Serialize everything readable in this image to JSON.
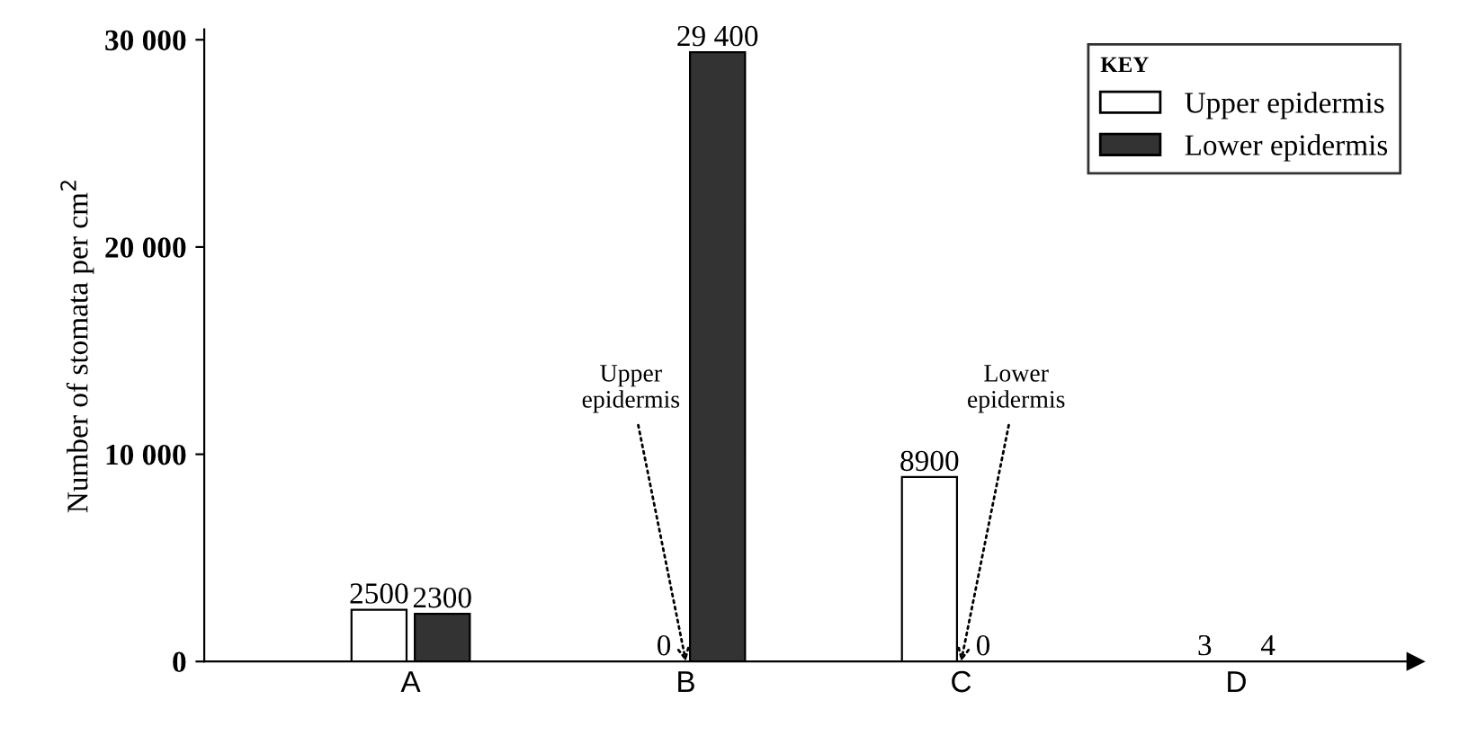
{
  "chart_data": {
    "type": "bar",
    "ylabel": "Number of stomata per cm$^{2}$",
    "legend_title": "KEY",
    "legend": "top right",
    "categories": [
      "A",
      "B",
      "C",
      "D"
    ],
    "series": [
      {
        "name": "Upper epidermis",
        "color": "#ffffff",
        "values": [
          2500,
          0,
          8900,
          3
        ],
        "value_labels": [
          "2500",
          "0",
          "8900",
          "3"
        ]
      },
      {
        "name": "Lower epidermis",
        "color": "#333333",
        "values": [
          2300,
          29400,
          0,
          4
        ],
        "value_labels": [
          "2300",
          "29 400",
          "0",
          "4"
        ]
      }
    ],
    "ylim": [
      0,
      30500
    ],
    "yticks": [
      0,
      {
        "value": 10000,
        "label": "10 000"
      },
      {
        "value": 20000,
        "label": "20 000"
      },
      {
        "value": 30000,
        "label": "30 000"
      }
    ],
    "annotations": [
      {
        "text": "Upper\nepidermis",
        "x": "B",
        "y": 0
      },
      {
        "text": "Lower\nepidermis",
        "x": "C",
        "y": 0
      }
    ],
    "grid": false
  }
}
